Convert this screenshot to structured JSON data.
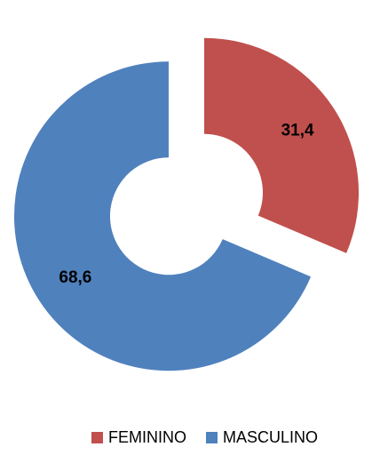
{
  "chart_data": {
    "type": "pie",
    "variant": "doughnut, exploded slices",
    "categories": [
      "FEMININO",
      "MASCULINO"
    ],
    "values": [
      31.4,
      68.6
    ],
    "data_labels": [
      "31,4",
      "68,6"
    ],
    "colors": [
      "#C0504D",
      "#4F81BD"
    ],
    "legend_position": "bottom",
    "title": ""
  },
  "legend": {
    "items": [
      {
        "label": "FEMININO",
        "color": "#C0504D"
      },
      {
        "label": "MASCULINO",
        "color": "#4F81BD"
      }
    ]
  }
}
